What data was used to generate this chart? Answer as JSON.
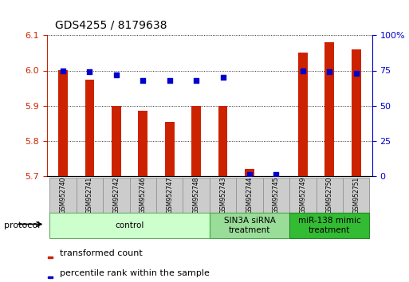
{
  "title": "GDS4255 / 8179638",
  "samples": [
    "GSM952740",
    "GSM952741",
    "GSM952742",
    "GSM952746",
    "GSM952747",
    "GSM952748",
    "GSM952743",
    "GSM952744",
    "GSM952745",
    "GSM952749",
    "GSM952750",
    "GSM952751"
  ],
  "transformed_count": [
    6.0,
    5.975,
    5.9,
    5.885,
    5.855,
    5.9,
    5.9,
    5.72,
    5.7,
    6.05,
    6.08,
    6.06
  ],
  "percentile_rank": [
    75,
    74,
    72,
    68,
    68,
    68,
    70,
    1,
    1,
    75,
    74,
    73
  ],
  "ylim_left": [
    5.7,
    6.1
  ],
  "ylim_right": [
    0,
    100
  ],
  "yticks_left": [
    5.7,
    5.8,
    5.9,
    6.0,
    6.1
  ],
  "yticks_right": [
    0,
    25,
    50,
    75,
    100
  ],
  "bar_color": "#cc2200",
  "dot_color": "#0000cc",
  "groups": [
    {
      "label": "control",
      "start": 0,
      "end": 6,
      "color": "#ccffcc",
      "border": "#66aa66"
    },
    {
      "label": "SIN3A siRNA\ntreatment",
      "start": 6,
      "end": 9,
      "color": "#99dd99",
      "border": "#44aa44"
    },
    {
      "label": "miR-138 mimic\ntreatment",
      "start": 9,
      "end": 12,
      "color": "#33bb33",
      "border": "#228822"
    }
  ],
  "legend_items": [
    {
      "label": "transformed count",
      "color": "#cc2200"
    },
    {
      "label": "percentile rank within the sample",
      "color": "#0000cc"
    }
  ],
  "bar_width": 0.35,
  "bar_bottom": 5.7,
  "sample_box_color": "#cccccc",
  "sample_box_edge": "#999999"
}
